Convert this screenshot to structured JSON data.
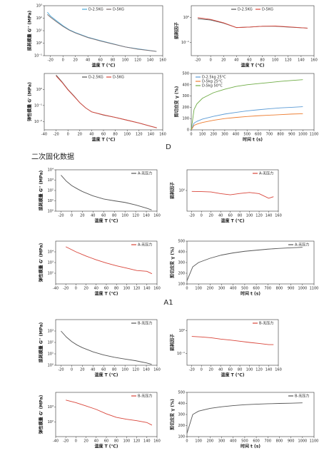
{
  "captions": {
    "d": "D",
    "section": "二次固化数据",
    "a1": "A1"
  },
  "chart_data": [
    {
      "type": "line",
      "xlabel": "温度 T (℃)",
      "ylabel": "损耗模量 G'' (MPa)",
      "ylog": true,
      "legend": "upper center",
      "x": [
        -25,
        -20,
        -10,
        0,
        10,
        20,
        40,
        60,
        80,
        100,
        120,
        150
      ],
      "xlim": [
        -30,
        160
      ],
      "xticks": [
        -20,
        0,
        20,
        40,
        60,
        80,
        100,
        120,
        140,
        160
      ],
      "ylim": [
        0.1,
        1000
      ],
      "yticks": [
        {
          "value": 0.1,
          "label": "10⁻¹"
        },
        {
          "value": 1,
          "label": "10⁰"
        },
        {
          "value": 10,
          "label": "10¹"
        },
        {
          "value": 100,
          "label": "10²"
        },
        {
          "value": 1000,
          "label": "10³"
        }
      ],
      "series": [
        {
          "name": "D-2.5KG",
          "color": "#4aa8d8",
          "values": [
            300,
            150,
            60,
            25,
            12,
            7,
            3,
            1.6,
            0.9,
            0.5,
            0.35,
            0.22
          ]
        },
        {
          "name": "D-5KG",
          "color": "#7a6a6a",
          "values": [
            200,
            120,
            50,
            22,
            11,
            6.5,
            2.8,
            1.5,
            0.85,
            0.5,
            0.33,
            0.22
          ]
        }
      ]
    },
    {
      "type": "line",
      "xlabel": "温度 T (℃)",
      "ylabel": "损耗因子",
      "ylog": true,
      "legend": "upper center",
      "x": [
        -20,
        0,
        20,
        40,
        60,
        80,
        100,
        120,
        150
      ],
      "xlim": [
        -30,
        160
      ],
      "xticks": [
        -20,
        0,
        20,
        40,
        60,
        80,
        100,
        120,
        140,
        160
      ],
      "ylim": [
        0.03,
        3
      ],
      "yticks": [
        {
          "value": 0.1,
          "label": "10⁻¹"
        },
        {
          "value": 1,
          "label": "10⁰"
        }
      ],
      "series": [
        {
          "name": "D-2.5KG",
          "color": "#555555",
          "values": [
            0.9,
            0.8,
            0.6,
            0.4,
            0.42,
            0.45,
            0.45,
            0.42,
            0.38
          ]
        },
        {
          "name": "D-5KG",
          "color": "#d9453a",
          "values": [
            1.0,
            0.85,
            0.62,
            0.4,
            0.42,
            0.45,
            0.46,
            0.43,
            0.38
          ]
        }
      ]
    },
    {
      "type": "line",
      "xlabel": "温度 T (℃)",
      "ylabel": "弹性模量 G' (MPa)",
      "ylog": true,
      "legend": "upper center",
      "x": [
        -20,
        -10,
        0,
        10,
        20,
        30,
        40,
        60,
        80,
        100,
        120,
        140,
        150
      ],
      "xlim": [
        -40,
        160
      ],
      "xticks": [
        -40,
        -20,
        0,
        20,
        40,
        60,
        80,
        100,
        120,
        140,
        160
      ],
      "ylim": [
        0.003,
        10
      ],
      "yticks": [
        {
          "value": 0.01,
          "label": "10⁻²"
        },
        {
          "value": 0.1,
          "label": "10⁻¹"
        },
        {
          "value": 1,
          "label": "10⁰"
        }
      ],
      "series": [
        {
          "name": "D-2.5KG",
          "color": "#555555",
          "values": [
            8,
            3,
            1,
            0.4,
            0.15,
            0.07,
            0.04,
            0.025,
            0.018,
            0.012,
            0.008,
            0.005,
            0.004
          ]
        },
        {
          "name": "D-5KG",
          "color": "#d9453a",
          "values": [
            7,
            2.8,
            0.95,
            0.38,
            0.15,
            0.07,
            0.04,
            0.026,
            0.018,
            0.012,
            0.008,
            0.005,
            0.004
          ]
        }
      ]
    },
    {
      "type": "line",
      "xlabel": "时间 t (s)",
      "ylabel": "剪切应变 γ (%)",
      "ylog": false,
      "legend": "upper left",
      "x": [
        0,
        25,
        50,
        100,
        200,
        300,
        400,
        500,
        600,
        700,
        800,
        900,
        1000
      ],
      "xlim": [
        0,
        1100
      ],
      "xticks": [
        0,
        100,
        200,
        300,
        400,
        500,
        600,
        700,
        800,
        900,
        1000,
        1100
      ],
      "ylim": [
        0,
        500
      ],
      "yticks": [
        0,
        100,
        200,
        300,
        400,
        500
      ],
      "series": [
        {
          "name": "D-2.5kg 25°C",
          "color": "#5b9bd5",
          "values": [
            0,
            60,
            75,
            95,
            120,
            140,
            155,
            168,
            178,
            187,
            195,
            200,
            205
          ]
        },
        {
          "name": "D-5kg 25°C",
          "color": "#ed7d31",
          "values": [
            0,
            40,
            50,
            65,
            85,
            100,
            110,
            118,
            125,
            130,
            135,
            140,
            143
          ]
        },
        {
          "name": "D-5kg 50°C",
          "color": "#70ad47",
          "values": [
            0,
            180,
            230,
            280,
            330,
            360,
            385,
            400,
            410,
            420,
            430,
            438,
            445
          ]
        }
      ]
    },
    {
      "type": "line",
      "xlabel": "温度 T (℃)",
      "ylabel": "损耗模量 G'' (MPa)",
      "ylog": true,
      "legend": "upper right",
      "x": [
        -20,
        -10,
        0,
        10,
        20,
        40,
        60,
        80,
        100,
        120,
        140,
        150
      ],
      "xlim": [
        -30,
        160
      ],
      "xticks": [
        -20,
        0,
        20,
        40,
        60,
        80,
        100,
        120,
        140,
        160
      ],
      "ylim": [
        1,
        10000
      ],
      "yticks": [
        {
          "value": 1,
          "label": "10⁰"
        },
        {
          "value": 10,
          "label": "10¹"
        },
        {
          "value": 100,
          "label": "10²"
        },
        {
          "value": 1000,
          "label": "10³"
        },
        {
          "value": 10000,
          "label": "10⁴"
        }
      ],
      "series": [
        {
          "name": "A-无压力",
          "color": "#555555",
          "values": [
            3000,
            800,
            300,
            150,
            80,
            30,
            15,
            10,
            7,
            4,
            2,
            1.3
          ]
        }
      ]
    },
    {
      "type": "line",
      "xlabel": "温度 T (℃)",
      "ylabel": "损耗因子",
      "ylog": true,
      "legend": "upper right",
      "x": [
        -20,
        0,
        20,
        40,
        60,
        80,
        100,
        120,
        140,
        150
      ],
      "xlim": [
        -30,
        160
      ],
      "xticks": [
        -20,
        0,
        20,
        40,
        60,
        80,
        100,
        120,
        140,
        160
      ],
      "ylim": [
        0.1,
        10
      ],
      "yticks": [
        {
          "value": 1,
          "label": "10⁰"
        }
      ],
      "series": [
        {
          "name": "A-无压力",
          "color": "#d9453a",
          "values": [
            0.9,
            0.88,
            0.85,
            0.7,
            0.62,
            0.72,
            0.8,
            0.7,
            0.42,
            0.5
          ]
        }
      ]
    },
    {
      "type": "line",
      "xlabel": "温度 T (℃)",
      "ylabel": "弹性模量 G' (MPa)",
      "ylog": true,
      "legend": "upper right",
      "x": [
        -20,
        0,
        20,
        40,
        60,
        80,
        100,
        120,
        140,
        150
      ],
      "xlim": [
        -40,
        160
      ],
      "xticks": [
        -40,
        -20,
        0,
        20,
        40,
        60,
        80,
        100,
        120,
        140,
        160
      ],
      "ylim": [
        10,
        100000
      ],
      "yticks": [
        {
          "value": 100,
          "label": "10²"
        },
        {
          "value": 1000,
          "label": "10³"
        },
        {
          "value": 10000,
          "label": "10⁴"
        }
      ],
      "series": [
        {
          "name": "A-无压力",
          "color": "#d9453a",
          "values": [
            30000,
            10000,
            4000,
            1800,
            900,
            500,
            300,
            180,
            150,
            90
          ]
        }
      ]
    },
    {
      "type": "line",
      "xlabel": "时间 t (s)",
      "ylabel": "剪切应变 γ (%)",
      "ylog": false,
      "legend": "upper right",
      "x": [
        0,
        50,
        100,
        200,
        300,
        400,
        500,
        600,
        700,
        800,
        900,
        1000
      ],
      "xlim": [
        0,
        1100
      ],
      "xticks": [
        0,
        100,
        200,
        300,
        400,
        500,
        600,
        700,
        800,
        900,
        1000,
        1100
      ],
      "ylim": [
        100,
        500
      ],
      "yticks": [
        100,
        200,
        300,
        400,
        500
      ],
      "series": [
        {
          "name": "A-无压力",
          "color": "#555555",
          "values": [
            130,
            260,
            300,
            340,
            370,
            390,
            405,
            415,
            425,
            432,
            438,
            442
          ]
        }
      ]
    },
    {
      "type": "line",
      "xlabel": "温度 T (℃)",
      "ylabel": "损耗模量 G'' (MPa)",
      "ylog": true,
      "legend": "upper right",
      "x": [
        -20,
        -10,
        0,
        10,
        20,
        40,
        60,
        80,
        100,
        120,
        140,
        150
      ],
      "xlim": [
        -30,
        160
      ],
      "xticks": [
        -20,
        0,
        20,
        40,
        60,
        80,
        100,
        120,
        140,
        160
      ],
      "ylim": [
        1,
        10000
      ],
      "yticks": [
        {
          "value": 1,
          "label": "10⁰"
        },
        {
          "value": 10,
          "label": "10¹"
        },
        {
          "value": 100,
          "label": "10²"
        },
        {
          "value": 1000,
          "label": "10³"
        }
      ],
      "series": [
        {
          "name": "B-无压力",
          "color": "#555555",
          "values": [
            1000,
            300,
            120,
            60,
            35,
            15,
            8,
            5,
            3.5,
            2.5,
            1.6,
            1.2
          ]
        }
      ]
    },
    {
      "type": "line",
      "xlabel": "温度 T (℃)",
      "ylabel": "损耗因子",
      "ylog": true,
      "legend": "upper right",
      "x": [
        -20,
        0,
        20,
        40,
        60,
        80,
        100,
        120,
        140,
        150
      ],
      "xlim": [
        -30,
        160
      ],
      "xticks": [
        -20,
        0,
        20,
        40,
        60,
        80,
        100,
        120,
        140,
        160
      ],
      "ylim": [
        0.03,
        3
      ],
      "yticks": [
        {
          "value": 0.1,
          "label": "10⁻¹"
        },
        {
          "value": 1,
          "label": "10⁰"
        }
      ],
      "series": [
        {
          "name": "B-无压力",
          "color": "#d9453a",
          "values": [
            0.55,
            0.52,
            0.48,
            0.42,
            0.38,
            0.34,
            0.3,
            0.27,
            0.24,
            0.24
          ]
        }
      ]
    },
    {
      "type": "line",
      "xlabel": "温度 T (℃)",
      "ylabel": "弹性模量 G' (MPa)",
      "ylog": true,
      "legend": "upper right",
      "x": [
        -20,
        0,
        20,
        40,
        60,
        80,
        100,
        120,
        140,
        150
      ],
      "xlim": [
        -40,
        160
      ],
      "xticks": [
        -40,
        -20,
        0,
        20,
        40,
        60,
        80,
        100,
        120,
        140,
        160
      ],
      "ylim": [
        10,
        10000
      ],
      "yticks": [
        {
          "value": 100,
          "label": "10²"
        },
        {
          "value": 1000,
          "label": "10³"
        }
      ],
      "series": [
        {
          "name": "B-无压力",
          "color": "#d9453a",
          "values": [
            3000,
            2000,
            1200,
            700,
            350,
            200,
            150,
            120,
            90,
            60
          ]
        }
      ]
    },
    {
      "type": "line",
      "xlabel": "时间 t (s)",
      "ylabel": "剪切应变 γ (%)",
      "ylog": false,
      "legend": "upper right",
      "x": [
        0,
        50,
        100,
        200,
        300,
        400,
        500,
        600,
        700,
        800,
        900,
        1000
      ],
      "xlim": [
        0,
        1100
      ],
      "xticks": [
        0,
        100,
        200,
        300,
        400,
        500,
        600,
        700,
        800,
        900,
        1000,
        1100
      ],
      "ylim": [
        100,
        500
      ],
      "yticks": [
        100,
        200,
        300,
        400,
        500
      ],
      "series": [
        {
          "name": "B-无压力",
          "color": "#555555",
          "values": [
            130,
            300,
            330,
            355,
            370,
            380,
            388,
            393,
            397,
            400,
            402,
            405
          ]
        }
      ]
    }
  ]
}
